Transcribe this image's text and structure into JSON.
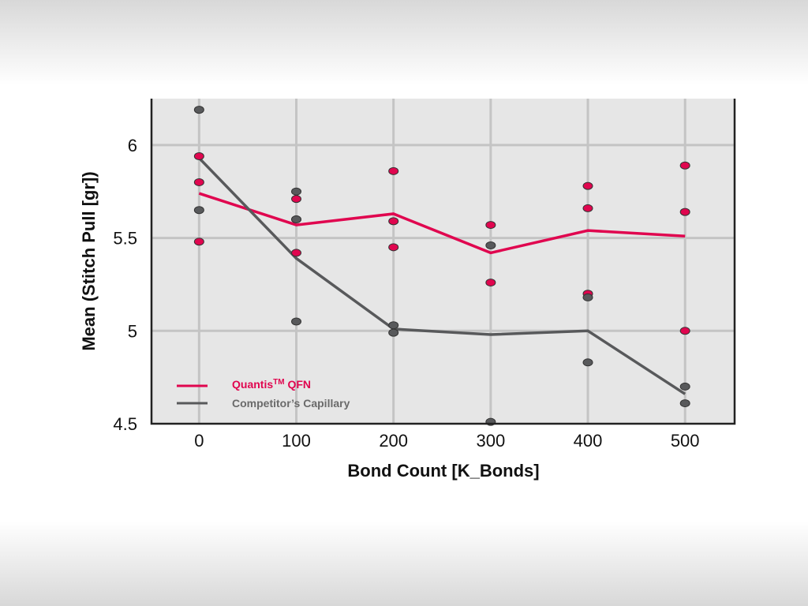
{
  "chart_data": {
    "type": "line",
    "title": "",
    "xlabel": "Bond Count [K_Bonds]",
    "ylabel": "Mean (Stitch Pull [gr])",
    "xlim": [
      -49,
      551
    ],
    "ylim": [
      4.5,
      6.25
    ],
    "x_ticks": [
      0,
      100,
      200,
      300,
      400,
      500
    ],
    "y_ticks": [
      4.5,
      5,
      5.5,
      6
    ],
    "x_tick_labels": [
      "0",
      "100",
      "200",
      "300",
      "400",
      "500"
    ],
    "y_tick_labels": [
      "4.5",
      "5",
      "5.5",
      "6"
    ],
    "grid": true,
    "legend_position": "bottom-left",
    "series": [
      {
        "name": "Quantis",
        "name_sup": "TM",
        "name_suffix": " QFN",
        "color": "#e0064f",
        "x": [
          0,
          100,
          200,
          300,
          400,
          500
        ],
        "mean": [
          5.74,
          5.57,
          5.63,
          5.42,
          5.54,
          5.51
        ],
        "points": [
          [
            0,
            5.94
          ],
          [
            0,
            5.8
          ],
          [
            0,
            5.48
          ],
          [
            100,
            5.71
          ],
          [
            100,
            5.6
          ],
          [
            100,
            5.42
          ],
          [
            200,
            5.86
          ],
          [
            200,
            5.59
          ],
          [
            200,
            5.45
          ],
          [
            300,
            5.57
          ],
          [
            300,
            5.26
          ],
          [
            400,
            5.78
          ],
          [
            400,
            5.66
          ],
          [
            400,
            5.2
          ],
          [
            500,
            5.89
          ],
          [
            500,
            5.64
          ],
          [
            500,
            5.0
          ]
        ]
      },
      {
        "name": "Competitor’s Capillary",
        "color": "#58595b",
        "x": [
          0,
          100,
          200,
          300,
          400,
          500
        ],
        "mean": [
          5.93,
          5.39,
          5.01,
          4.98,
          5.0,
          4.66
        ],
        "points": [
          [
            0,
            6.19
          ],
          [
            0,
            5.65
          ],
          [
            100,
            5.75
          ],
          [
            100,
            5.6
          ],
          [
            100,
            5.05
          ],
          [
            200,
            5.03
          ],
          [
            200,
            4.99
          ],
          [
            300,
            5.46
          ],
          [
            300,
            4.51
          ],
          [
            400,
            5.18
          ],
          [
            400,
            4.83
          ],
          [
            500,
            4.7
          ],
          [
            500,
            4.61
          ]
        ]
      }
    ]
  }
}
